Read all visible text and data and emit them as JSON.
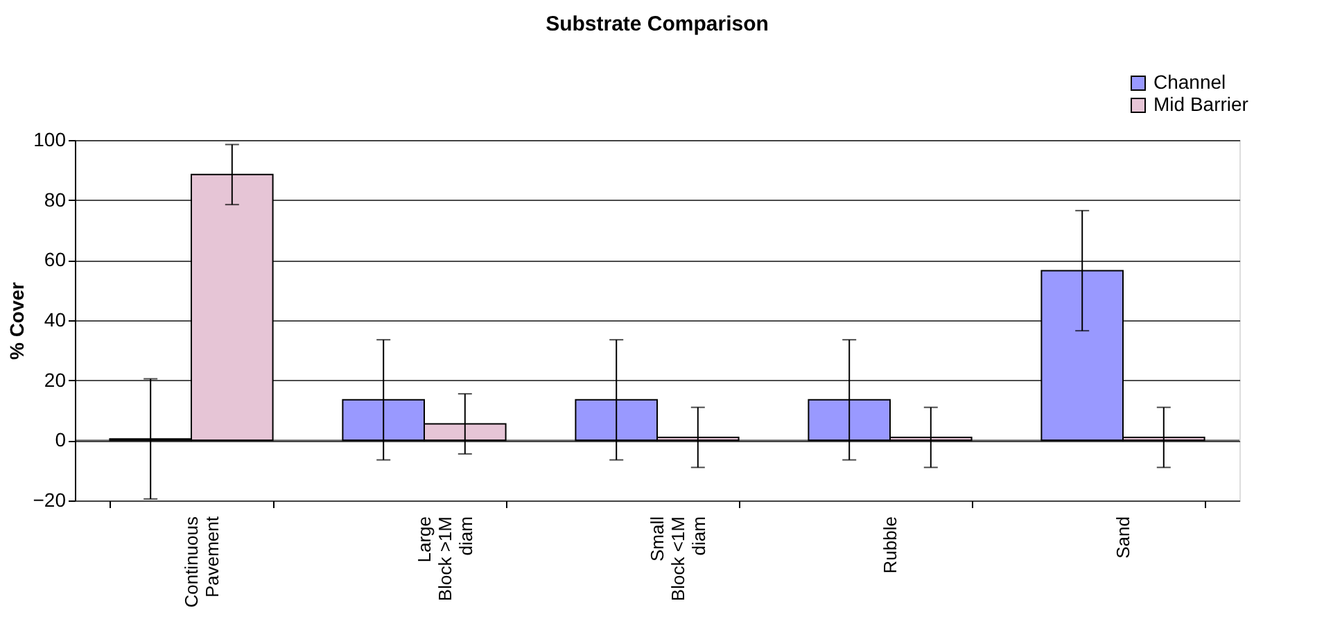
{
  "chart_data": {
    "type": "bar",
    "title": "Substrate Comparison",
    "ylabel": "% Cover",
    "categories": [
      "Continuous Pavement",
      "Large Block >1M diam",
      "Small Block <1M diam",
      "Rubble",
      "Sand"
    ],
    "series": [
      {
        "name": "Channel",
        "color": "#9999ff",
        "values": [
          0.5,
          13.5,
          13.5,
          13.5,
          56.5
        ],
        "errors": [
          20,
          20,
          20,
          20,
          20
        ]
      },
      {
        "name": "Mid Barrier",
        "color": "#e6c5d6",
        "values": [
          88.5,
          5.5,
          1,
          1,
          1
        ],
        "errors": [
          10,
          10,
          10,
          10,
          10
        ]
      }
    ],
    "ylim": [
      -20,
      100
    ],
    "yticks": [
      -20,
      0,
      20,
      40,
      60,
      80,
      100
    ],
    "grid": "y",
    "legend": "top right"
  }
}
